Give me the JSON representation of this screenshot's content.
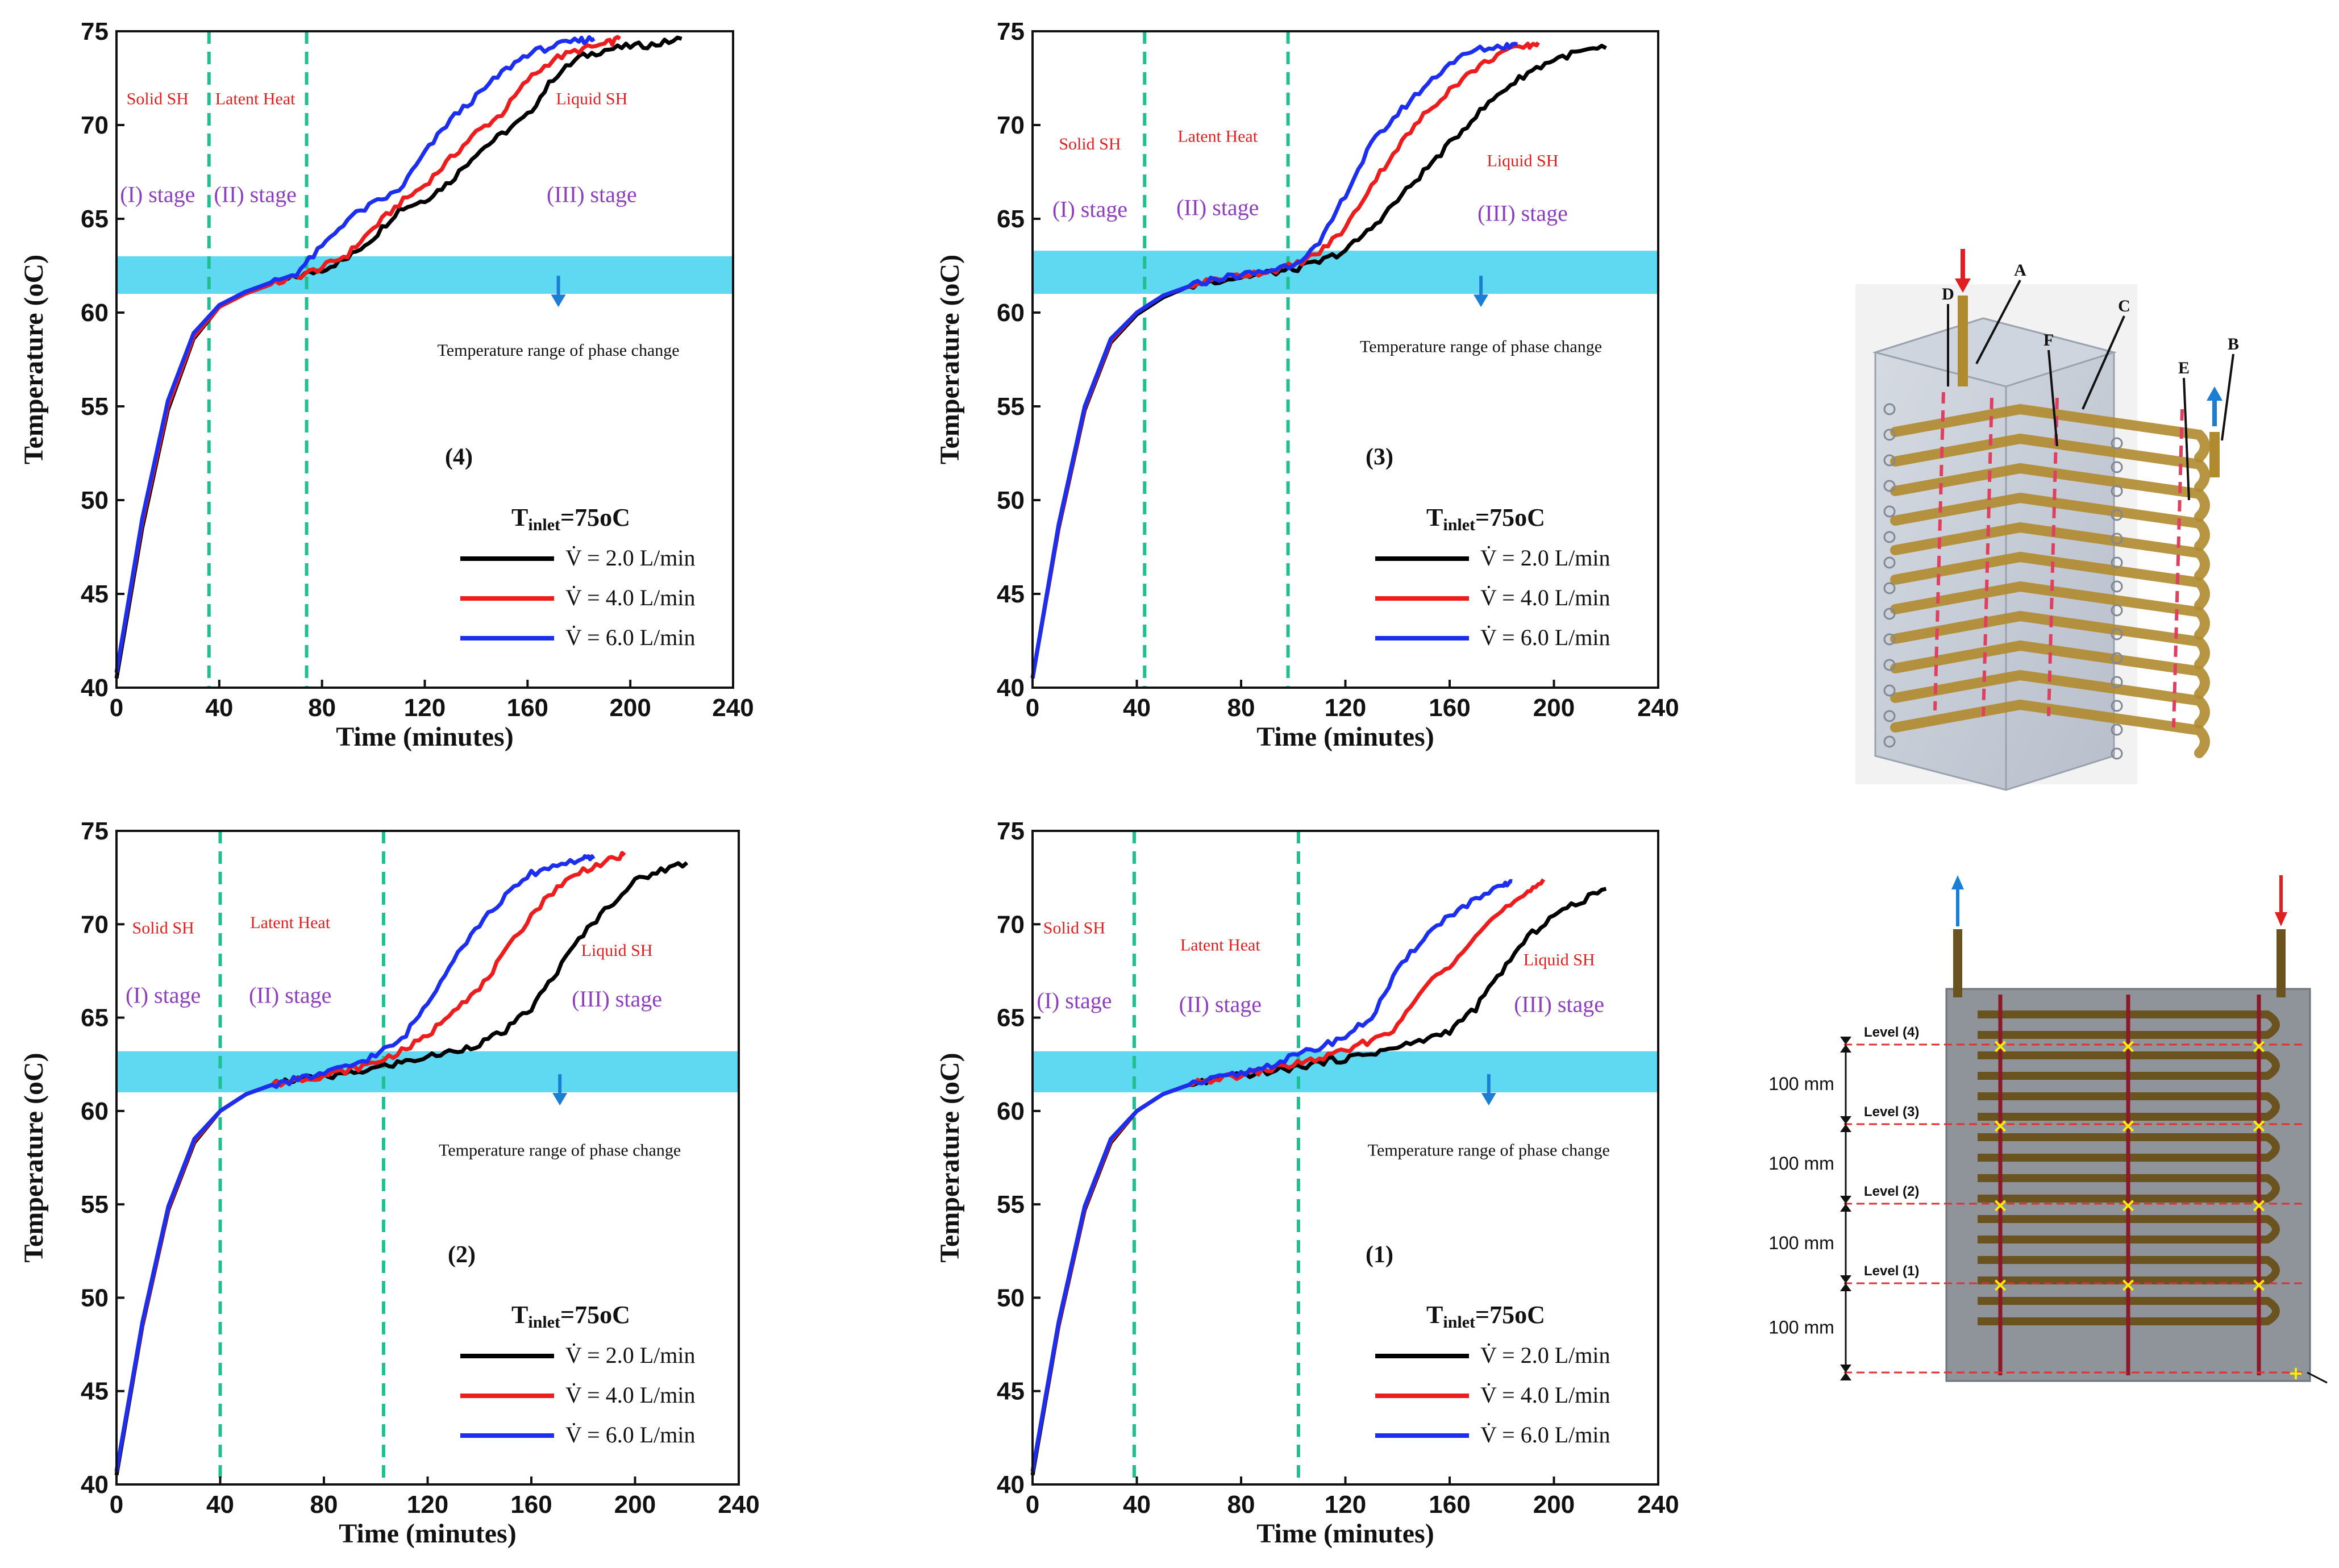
{
  "chart_data": [
    {
      "type": "line",
      "panel_label": "(4)",
      "xlabel": "Time (minutes)",
      "ylabel": "Temperature (oC)",
      "xlim": [
        0,
        240
      ],
      "ylim": [
        40,
        75
      ],
      "xticks": [
        0,
        40,
        80,
        120,
        160,
        200,
        240
      ],
      "yticks": [
        40,
        45,
        50,
        55,
        60,
        65,
        70,
        75
      ],
      "phase_band": [
        61,
        63
      ],
      "dividers": [
        36,
        74
      ],
      "regions": [
        {
          "label": "Solid SH",
          "stage": "(I) stage",
          "x": 16,
          "label_y": 71.1,
          "stage_y": 65.9
        },
        {
          "label": "Latent Heat",
          "stage": "(II) stage",
          "x": 54,
          "label_y": 71.1,
          "stage_y": 65.9
        },
        {
          "label": "Liquid SH",
          "stage": "(III) stage",
          "x": 185,
          "label_y": 71.1,
          "stage_y": 65.9
        }
      ],
      "annotation": {
        "text": "Temperature range of phase change",
        "x": 172,
        "arrow_y": 60.6,
        "text_y": 57.7
      },
      "legend": {
        "title": "Tinlet=75oC",
        "title_main": "T",
        "title_sub": "inlet",
        "title_rest": "=75oC",
        "entries": [
          "V̇ = 2.0 L/min",
          "V̇ = 4.0 L/min",
          "V̇ = 6.0 L/min"
        ]
      },
      "series": [
        {
          "name": "2.0 L/min",
          "color": "#000000",
          "x": [
            0,
            10,
            20,
            30,
            40,
            50,
            60,
            70,
            80,
            90,
            100,
            110,
            120,
            130,
            140,
            150,
            160,
            170,
            180,
            190,
            200,
            210,
            220
          ],
          "y": [
            40.5,
            48.5,
            54.8,
            58.6,
            60.3,
            61.0,
            61.5,
            61.9,
            62.3,
            62.9,
            64.0,
            65.5,
            66.0,
            67.0,
            68.5,
            69.5,
            70.5,
            72.5,
            73.6,
            74.0,
            74.2,
            74.3,
            74.6
          ]
        },
        {
          "name": "4.0 L/min",
          "color": "#ee1c1c",
          "x": [
            0,
            10,
            20,
            30,
            40,
            50,
            60,
            70,
            80,
            90,
            100,
            110,
            120,
            130,
            140,
            150,
            160,
            170,
            180,
            190,
            196
          ],
          "y": [
            40.8,
            48.8,
            55.0,
            58.7,
            60.3,
            61.0,
            61.5,
            61.9,
            62.4,
            63.1,
            64.5,
            65.8,
            66.8,
            68.2,
            69.6,
            70.6,
            72.4,
            73.5,
            74.0,
            74.3,
            74.6
          ]
        },
        {
          "name": "6.0 L/min",
          "color": "#1c2ef0",
          "x": [
            0,
            10,
            20,
            30,
            40,
            50,
            60,
            70,
            80,
            90,
            100,
            110,
            120,
            130,
            140,
            150,
            160,
            170,
            180,
            186
          ],
          "y": [
            40.8,
            49.0,
            55.3,
            58.9,
            60.4,
            61.1,
            61.6,
            62.1,
            63.5,
            65.0,
            65.8,
            66.5,
            68.5,
            70.3,
            71.5,
            72.8,
            73.8,
            74.2,
            74.5,
            74.6
          ]
        }
      ]
    },
    {
      "type": "line",
      "panel_label": "(3)",
      "xlabel": "Time (minutes)",
      "ylabel": "Temperature (oC)",
      "xlim": [
        0,
        240
      ],
      "ylim": [
        40,
        75
      ],
      "xticks": [
        0,
        40,
        80,
        120,
        160,
        200,
        240
      ],
      "yticks": [
        40,
        45,
        50,
        55,
        60,
        65,
        70,
        75
      ],
      "phase_band": [
        61,
        63.3
      ],
      "dividers": [
        43,
        98
      ],
      "regions": [
        {
          "label": "Solid SH",
          "stage": "(I) stage",
          "x": 22,
          "label_y": 68.7,
          "stage_y": 65.1
        },
        {
          "label": "Latent Heat",
          "stage": "(II) stage",
          "x": 71,
          "label_y": 69.1,
          "stage_y": 65.2
        },
        {
          "label": "Liquid SH",
          "stage": "(III) stage",
          "x": 188,
          "label_y": 67.8,
          "stage_y": 64.9
        }
      ],
      "annotation": {
        "text": "Temperature range of phase change",
        "x": 172,
        "arrow_y": 60.6,
        "text_y": 57.9
      },
      "legend": {
        "title": "Tinlet=75oC",
        "title_main": "T",
        "title_sub": "inlet",
        "title_rest": "=75oC",
        "entries": [
          "V̇ = 2.0 L/min",
          "V̇ = 4.0 L/min",
          "V̇ = 6.0 L/min"
        ]
      },
      "series": [
        {
          "name": "2.0 L/min",
          "color": "#000000",
          "x": [
            0,
            10,
            20,
            30,
            40,
            50,
            60,
            70,
            80,
            90,
            100,
            110,
            120,
            130,
            140,
            150,
            160,
            170,
            180,
            190,
            200,
            210,
            220
          ],
          "y": [
            40.5,
            48.5,
            54.8,
            58.4,
            59.9,
            60.8,
            61.4,
            61.7,
            61.9,
            62.1,
            62.3,
            62.7,
            63.3,
            64.5,
            66.0,
            67.5,
            69.0,
            70.5,
            71.8,
            72.8,
            73.5,
            73.9,
            74.1
          ]
        },
        {
          "name": "4.0 L/min",
          "color": "#ee1c1c",
          "x": [
            0,
            10,
            20,
            30,
            40,
            50,
            60,
            70,
            80,
            90,
            100,
            110,
            120,
            130,
            140,
            150,
            160,
            170,
            180,
            190,
            194
          ],
          "y": [
            40.5,
            48.6,
            54.9,
            58.5,
            60.0,
            60.9,
            61.4,
            61.8,
            62.0,
            62.2,
            62.5,
            63.2,
            64.5,
            66.8,
            68.8,
            70.5,
            71.9,
            73.0,
            73.9,
            74.2,
            74.4
          ]
        },
        {
          "name": "6.0 L/min",
          "color": "#1c2ef0",
          "x": [
            0,
            10,
            20,
            30,
            40,
            50,
            60,
            70,
            80,
            90,
            100,
            110,
            120,
            130,
            140,
            150,
            160,
            170,
            180,
            186
          ],
          "y": [
            40.5,
            48.7,
            55.0,
            58.6,
            60.0,
            60.9,
            61.4,
            61.8,
            62.0,
            62.2,
            62.6,
            63.6,
            66.3,
            69.0,
            70.6,
            72.0,
            73.3,
            74.0,
            74.2,
            74.3
          ]
        }
      ]
    },
    {
      "type": "line",
      "panel_label": "(2)",
      "xlabel": "Time (minutes)",
      "ylabel": "Temperature (oC)",
      "xlim": [
        0,
        240
      ],
      "ylim": [
        40,
        75
      ],
      "xticks": [
        0,
        40,
        80,
        120,
        160,
        200,
        240
      ],
      "yticks": [
        40,
        45,
        50,
        55,
        60,
        65,
        70,
        75
      ],
      "phase_band": [
        61,
        63.2
      ],
      "dividers": [
        40,
        103
      ],
      "regions": [
        {
          "label": "Solid SH",
          "stage": "(I) stage",
          "x": 18,
          "label_y": 69.5,
          "stage_y": 65.8
        },
        {
          "label": "Latent Heat",
          "stage": "(II) stage",
          "x": 67,
          "label_y": 69.8,
          "stage_y": 65.8
        },
        {
          "label": "Liquid SH",
          "stage": "(III) stage",
          "x": 193,
          "label_y": 68.3,
          "stage_y": 65.6
        }
      ],
      "annotation": {
        "text": "Temperature range of phase change",
        "x": 171,
        "arrow_y": 60.6,
        "text_y": 57.6
      },
      "legend": {
        "title": "Tinlet=75oC",
        "title_main": "T",
        "title_sub": "inlet",
        "title_rest": "=75oC",
        "entries": [
          "V̇ = 2.0 L/min",
          "V̇ = 4.0 L/min",
          "V̇ = 6.0 L/min"
        ]
      },
      "series": [
        {
          "name": "2.0 L/min",
          "color": "#000000",
          "x": [
            0,
            10,
            20,
            30,
            40,
            50,
            60,
            70,
            80,
            90,
            100,
            110,
            120,
            130,
            140,
            150,
            160,
            170,
            180,
            190,
            200,
            210,
            220
          ],
          "y": [
            40.5,
            48.5,
            54.7,
            58.3,
            60.0,
            60.9,
            61.4,
            61.7,
            61.8,
            62.0,
            62.3,
            62.6,
            62.9,
            63.2,
            63.6,
            64.3,
            65.5,
            67.5,
            69.5,
            71.0,
            72.3,
            72.9,
            73.3
          ]
        },
        {
          "name": "4.0 L/min",
          "color": "#ee1c1c",
          "x": [
            0,
            10,
            20,
            30,
            40,
            50,
            60,
            70,
            80,
            90,
            100,
            110,
            120,
            130,
            140,
            150,
            160,
            170,
            180,
            190,
            196
          ],
          "y": [
            40.7,
            48.6,
            54.8,
            58.4,
            60.0,
            60.9,
            61.4,
            61.7,
            61.9,
            62.2,
            62.6,
            63.2,
            64.0,
            65.5,
            66.5,
            68.5,
            70.5,
            72.0,
            72.9,
            73.4,
            73.7
          ]
        },
        {
          "name": "6.0 L/min",
          "color": "#1c2ef0",
          "x": [
            0,
            10,
            20,
            30,
            40,
            50,
            60,
            70,
            80,
            90,
            100,
            110,
            120,
            130,
            140,
            150,
            160,
            170,
            180,
            184
          ],
          "y": [
            40.7,
            48.7,
            54.9,
            58.5,
            60.0,
            60.9,
            61.4,
            61.7,
            62.0,
            62.4,
            63.0,
            63.8,
            65.8,
            68.2,
            70.0,
            71.5,
            72.7,
            73.2,
            73.5,
            73.5
          ]
        }
      ]
    },
    {
      "type": "line",
      "panel_label": "(1)",
      "xlabel": "Time (minutes)",
      "ylabel": "Temperature (oC)",
      "xlim": [
        0,
        240
      ],
      "ylim": [
        40,
        75
      ],
      "xticks": [
        0,
        40,
        80,
        120,
        160,
        200,
        240
      ],
      "yticks": [
        40,
        45,
        50,
        55,
        60,
        65,
        70,
        75
      ],
      "phase_band": [
        61,
        63.2
      ],
      "dividers": [
        39,
        102
      ],
      "regions": [
        {
          "label": "Solid SH",
          "stage": "(I) stage",
          "x": 16,
          "label_y": 69.5,
          "stage_y": 65.5
        },
        {
          "label": "Latent Heat",
          "stage": "(II) stage",
          "x": 72,
          "label_y": 68.6,
          "stage_y": 65.3
        },
        {
          "label": "Liquid SH",
          "stage": "(III) stage",
          "x": 202,
          "label_y": 67.8,
          "stage_y": 65.3
        }
      ],
      "annotation": {
        "text": "Temperature range of phase change",
        "x": 175,
        "arrow_y": 60.6,
        "text_y": 57.6
      },
      "legend": {
        "title": "Tinlet=75oC",
        "title_main": "T",
        "title_sub": "inlet",
        "title_rest": "=75oC",
        "entries": [
          "V̇ = 2.0 L/min",
          "V̇ = 4.0 L/min",
          "V̇ = 6.0 L/min"
        ]
      },
      "series": [
        {
          "name": "2.0 L/min",
          "color": "#000000",
          "x": [
            0,
            10,
            20,
            30,
            40,
            50,
            60,
            70,
            80,
            90,
            100,
            110,
            120,
            130,
            140,
            150,
            160,
            170,
            180,
            190,
            200,
            210,
            220
          ],
          "y": [
            40.5,
            48.5,
            54.7,
            58.3,
            60.0,
            60.9,
            61.4,
            61.7,
            61.9,
            62.1,
            62.3,
            62.6,
            62.8,
            63.1,
            63.4,
            63.8,
            64.3,
            65.5,
            67.5,
            69.3,
            70.5,
            71.2,
            71.9
          ]
        },
        {
          "name": "4.0 L/min",
          "color": "#ee1c1c",
          "x": [
            0,
            10,
            20,
            30,
            40,
            50,
            60,
            70,
            80,
            90,
            100,
            110,
            120,
            130,
            140,
            150,
            160,
            170,
            180,
            190,
            196
          ],
          "y": [
            40.7,
            48.6,
            54.8,
            58.4,
            60.0,
            60.9,
            61.4,
            61.7,
            61.9,
            62.2,
            62.5,
            62.8,
            63.2,
            63.8,
            64.5,
            66.6,
            67.8,
            69.5,
            70.7,
            71.6,
            72.4
          ]
        },
        {
          "name": "6.0 L/min",
          "color": "#1c2ef0",
          "x": [
            0,
            10,
            20,
            30,
            40,
            50,
            60,
            70,
            80,
            90,
            100,
            110,
            120,
            130,
            140,
            150,
            160,
            170,
            180,
            184
          ],
          "y": [
            40.7,
            48.7,
            54.9,
            58.5,
            60.0,
            60.9,
            61.4,
            61.7,
            62.0,
            62.4,
            62.9,
            63.4,
            64.0,
            65.0,
            67.5,
            69.3,
            70.5,
            71.3,
            72.0,
            72.3
          ]
        }
      ]
    }
  ],
  "diagram": {
    "iso_labels": [
      "A",
      "B",
      "C",
      "D",
      "E",
      "F"
    ],
    "levels": [
      "Level (4)",
      "Level (3)",
      "Level (2)",
      "Level (1)"
    ],
    "spacing_label": "100 mm",
    "colors": {
      "inlet": "#e02020",
      "outlet": "#1a7fd4",
      "tube": "#8a6a1e",
      "marker": "#ffee00"
    }
  }
}
